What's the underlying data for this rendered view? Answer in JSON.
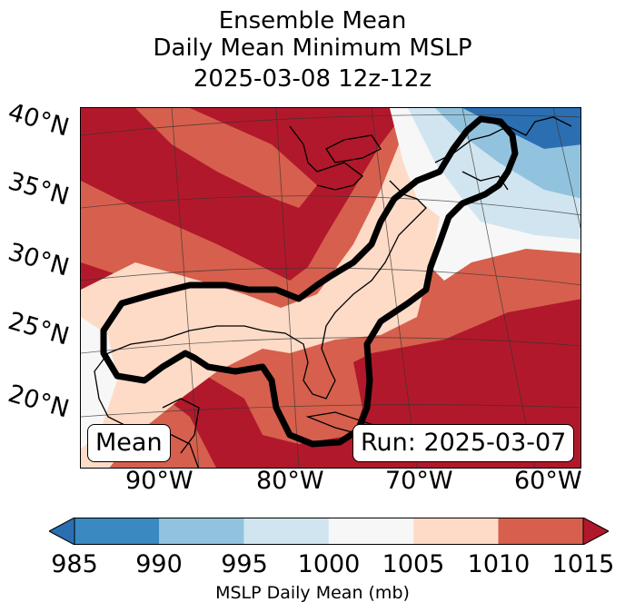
{
  "title": {
    "line1": "Ensemble Mean",
    "line2": "Daily Mean Minimum MSLP",
    "line3": "2025-03-08 12z-12z"
  },
  "map": {
    "lat_labels": [
      "40°N",
      "35°N",
      "30°N",
      "25°N",
      "20°N"
    ],
    "lon_labels": [
      "90°W",
      "80°W",
      "70°W",
      "60°W"
    ],
    "badge_left": "Mean",
    "badge_right": "Run: 2025-03-07",
    "fill_colors": {
      "lt985": "#9b1b2c",
      "c985_990": "#3a89c0",
      "c990_995": "#92c3de",
      "c995_1000": "#d1e5f0",
      "c1000_1005": "#f7f7f7",
      "c1005_1010": "#fddbc7",
      "c1010_1015": "#d6604d",
      "gt1015": "#b2182b",
      "dark_blue": "#2166ac"
    },
    "contour_color": "#000000"
  },
  "colorbar": {
    "ticks": [
      "985",
      "990",
      "995",
      "1000",
      "1005",
      "1010",
      "1015"
    ],
    "colors": [
      "#2b6fb2",
      "#3a89c0",
      "#92c3de",
      "#d1e5f0",
      "#f7f7f7",
      "#fddbc7",
      "#d6604d",
      "#b2182b"
    ],
    "label": "MSLP Daily Mean (mb)"
  }
}
